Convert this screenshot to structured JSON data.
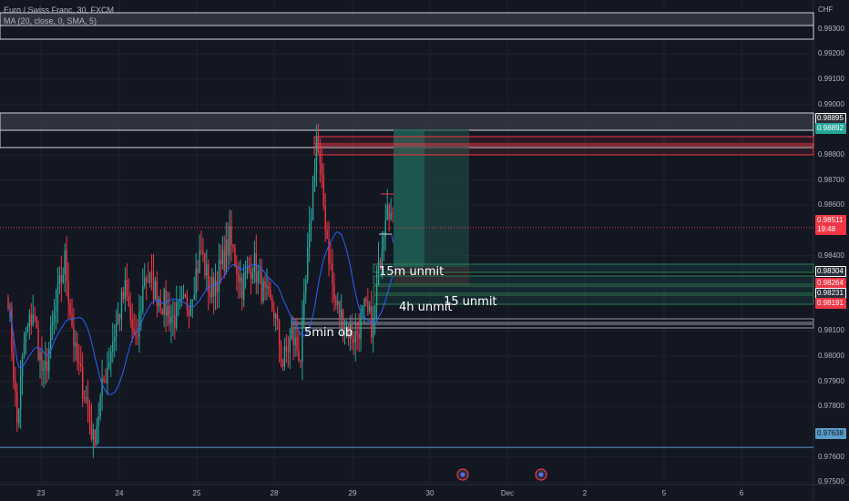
{
  "header": {
    "symbol_line": "Euro / Swiss Franc, 30, FXCM",
    "indicator_line": "MA (20, close, 0, SMA, 5)",
    "currency": "CHF"
  },
  "annotations": {
    "m15": "15m unmit",
    "h4": "4h unmit",
    "m15b": "15 unmit",
    "ob": "5min ob"
  },
  "price_tags": [
    {
      "text": "0.98895",
      "bg": "#2a2e39",
      "fg": "#ffffff",
      "border": "#ffffff"
    },
    {
      "text": "0.98892",
      "bg": "#26a69a",
      "fg": "#ffffff",
      "border": "#26a69a"
    },
    {
      "text": "0.98511",
      "bg": "#f23645",
      "fg": "#ffffff",
      "border": "#f23645"
    },
    {
      "text": "19:48",
      "bg": "#f23645",
      "fg": "#ffffff",
      "border": "#f23645"
    },
    {
      "text": "0.98304",
      "bg": "#2a2e39",
      "fg": "#ffffff",
      "border": "#ffffff"
    },
    {
      "text": "0.98264",
      "bg": "#f23645",
      "fg": "#ffffff",
      "border": "#f23645"
    },
    {
      "text": "0.98231",
      "bg": "#2a2e39",
      "fg": "#ffffff",
      "border": "#ffffff"
    },
    {
      "text": "0.98191",
      "bg": "#f23645",
      "fg": "#ffffff",
      "border": "#f23645"
    },
    {
      "text": "0.97638",
      "bg": "#5b9cc8",
      "fg": "#131722",
      "border": "#5b9cc8"
    }
  ],
  "y_axis": [
    {
      "label": "0.99300",
      "v": 0.993
    },
    {
      "label": "0.99200",
      "v": 0.992
    },
    {
      "label": "0.99100",
      "v": 0.991
    },
    {
      "label": "0.99000",
      "v": 0.99
    },
    {
      "label": "0.98800",
      "v": 0.988
    },
    {
      "label": "0.98700",
      "v": 0.987
    },
    {
      "label": "0.98600",
      "v": 0.986
    },
    {
      "label": "0.98400",
      "v": 0.984
    },
    {
      "label": "0.98100",
      "v": 0.981
    },
    {
      "label": "0.98000",
      "v": 0.98
    },
    {
      "label": "0.97900",
      "v": 0.979
    },
    {
      "label": "0.97800",
      "v": 0.978
    },
    {
      "label": "0.97600",
      "v": 0.976
    },
    {
      "label": "0.97500",
      "v": 0.975
    }
  ],
  "x_axis": [
    "23",
    "24",
    "25",
    "28",
    "29",
    "30",
    "Dec",
    "2",
    "5",
    "6"
  ],
  "chart_data": {
    "type": "candlestick",
    "interval": "30",
    "ylim": [
      0.97425,
      0.99415
    ],
    "moving_average": "SMA 20",
    "last_price": 0.98511,
    "last_price_countdown": "19:48",
    "price_levels": [
      0.98895,
      0.98892,
      0.98304,
      0.98264,
      0.98231,
      0.98191,
      0.97638
    ],
    "waypoints": [
      [
        0,
        0.9825
      ],
      [
        5,
        0.9773
      ],
      [
        9,
        0.9805
      ],
      [
        14,
        0.9818
      ],
      [
        20,
        0.979
      ],
      [
        27,
        0.982
      ],
      [
        32,
        0.9838
      ],
      [
        38,
        0.98
      ],
      [
        45,
        0.978
      ],
      [
        48,
        0.9766
      ],
      [
        54,
        0.979
      ],
      [
        60,
        0.981
      ],
      [
        66,
        0.9826
      ],
      [
        72,
        0.9803
      ],
      [
        77,
        0.9833
      ],
      [
        84,
        0.9825
      ],
      [
        93,
        0.9815
      ],
      [
        102,
        0.9822
      ],
      [
        109,
        0.9842
      ],
      [
        114,
        0.9825
      ],
      [
        120,
        0.9835
      ],
      [
        125,
        0.9846
      ],
      [
        132,
        0.9828
      ],
      [
        138,
        0.9838
      ],
      [
        145,
        0.9823
      ],
      [
        150,
        0.9818
      ],
      [
        155,
        0.9797
      ],
      [
        160,
        0.9808
      ],
      [
        165,
        0.98
      ],
      [
        170,
        0.9848
      ],
      [
        174,
        0.9887
      ],
      [
        178,
        0.986
      ],
      [
        184,
        0.9822
      ],
      [
        190,
        0.9812
      ],
      [
        196,
        0.9808
      ],
      [
        201,
        0.9818
      ],
      [
        206,
        0.9812
      ],
      [
        210,
        0.984
      ],
      [
        214,
        0.9865
      ],
      [
        217,
        0.9851
      ]
    ]
  },
  "event_markers": [
    "event-icon",
    "event-icon"
  ]
}
